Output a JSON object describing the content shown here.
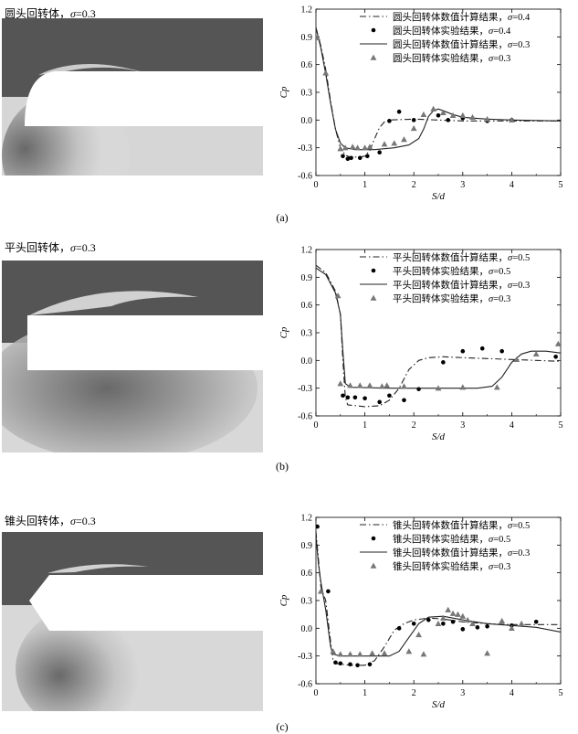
{
  "panels": [
    {
      "title_text": "圆头回转体，",
      "title_sym": "σ",
      "title_val": "=0.3",
      "label": "(a)"
    },
    {
      "title_text": "平头回转体，",
      "title_sym": "σ",
      "title_val": "=0.3",
      "label": "(b)"
    },
    {
      "title_text": "锥头回转体，",
      "title_sym": "σ",
      "title_val": "=0.3",
      "label": "(c)"
    }
  ],
  "chart_data": [
    {
      "type": "line",
      "xlabel": "S/d",
      "ylabel": "Cp",
      "xlim": [
        0,
        5
      ],
      "ylim": [
        -0.6,
        1.2
      ],
      "xticks": [
        "0",
        "1",
        "2",
        "3",
        "4",
        "5"
      ],
      "yticks": [
        "1.2",
        "0.9",
        "0.6",
        "0.3",
        "0.0",
        "-0.3",
        "-0.6"
      ],
      "legend_position": "top-right",
      "series": [
        {
          "name": "圆头回转体数值计算结果，σ=0.4",
          "style": "dashdot",
          "points": [
            [
              0.0,
              1.0
            ],
            [
              0.1,
              0.8
            ],
            [
              0.2,
              0.55
            ],
            [
              0.3,
              0.2
            ],
            [
              0.4,
              -0.1
            ],
            [
              0.5,
              -0.3
            ],
            [
              0.6,
              -0.38
            ],
            [
              0.7,
              -0.4
            ],
            [
              0.9,
              -0.4
            ],
            [
              1.0,
              -0.39
            ],
            [
              1.1,
              -0.33
            ],
            [
              1.2,
              -0.2
            ],
            [
              1.3,
              -0.08
            ],
            [
              1.4,
              -0.02
            ],
            [
              1.5,
              0.0
            ],
            [
              2.0,
              0.01
            ],
            [
              2.5,
              0.0
            ],
            [
              3.0,
              -0.01
            ],
            [
              4.0,
              -0.01
            ],
            [
              5.0,
              -0.01
            ]
          ]
        },
        {
          "name": "圆头回转体实验结果，σ=0.4",
          "style": "circle",
          "points": [
            [
              0.55,
              -0.39
            ],
            [
              0.65,
              -0.42
            ],
            [
              0.72,
              -0.41
            ],
            [
              0.9,
              -0.41
            ],
            [
              1.05,
              -0.39
            ],
            [
              1.3,
              -0.35
            ],
            [
              1.5,
              -0.01
            ],
            [
              1.7,
              0.09
            ],
            [
              2.0,
              0.0
            ],
            [
              2.5,
              0.05
            ],
            [
              2.7,
              0.0
            ],
            [
              3.0,
              0.02
            ],
            [
              3.5,
              -0.01
            ],
            [
              4.0,
              0.0
            ]
          ]
        },
        {
          "name": "圆头回转体数值计算结果，σ=0.3",
          "style": "solid",
          "points": [
            [
              0.0,
              1.0
            ],
            [
              0.1,
              0.78
            ],
            [
              0.2,
              0.5
            ],
            [
              0.3,
              0.18
            ],
            [
              0.4,
              -0.1
            ],
            [
              0.5,
              -0.25
            ],
            [
              0.6,
              -0.3
            ],
            [
              0.8,
              -0.32
            ],
            [
              1.2,
              -0.32
            ],
            [
              1.6,
              -0.3
            ],
            [
              1.9,
              -0.27
            ],
            [
              2.1,
              -0.2
            ],
            [
              2.2,
              -0.1
            ],
            [
              2.3,
              0.04
            ],
            [
              2.4,
              0.1
            ],
            [
              2.5,
              0.12
            ],
            [
              2.6,
              0.1
            ],
            [
              2.8,
              0.06
            ],
            [
              3.0,
              0.03
            ],
            [
              3.5,
              0.01
            ],
            [
              4.0,
              0.0
            ],
            [
              5.0,
              -0.01
            ]
          ]
        },
        {
          "name": "圆头回转体实验结果，σ=0.3",
          "style": "triangle",
          "points": [
            [
              0.03,
              0.89
            ],
            [
              0.2,
              0.51
            ],
            [
              0.5,
              -0.31
            ],
            [
              0.6,
              -0.3
            ],
            [
              0.75,
              -0.29
            ],
            [
              0.85,
              -0.3
            ],
            [
              1.0,
              -0.3
            ],
            [
              1.1,
              -0.29
            ],
            [
              1.4,
              -0.26
            ],
            [
              1.6,
              -0.25
            ],
            [
              1.8,
              -0.21
            ],
            [
              2.0,
              -0.09
            ],
            [
              2.2,
              0.06
            ],
            [
              2.4,
              0.12
            ],
            [
              2.6,
              0.08
            ],
            [
              2.8,
              0.05
            ],
            [
              3.0,
              0.05
            ],
            [
              3.2,
              0.03
            ],
            [
              3.5,
              0.01
            ],
            [
              4.0,
              0.0
            ]
          ]
        }
      ]
    },
    {
      "type": "line",
      "xlabel": "S/d",
      "ylabel": "Cp",
      "xlim": [
        0,
        5
      ],
      "ylim": [
        -0.6,
        1.2
      ],
      "xticks": [
        "0",
        "1",
        "2",
        "3",
        "4",
        "5"
      ],
      "yticks": [
        "1.2",
        "0.9",
        "0.6",
        "0.3",
        "0.0",
        "-0.3",
        "-0.6"
      ],
      "legend_position": "top-right",
      "series": [
        {
          "name": "平头回转体数值计算结果，σ=0.5",
          "style": "dashdot",
          "points": [
            [
              0.0,
              1.03
            ],
            [
              0.2,
              0.95
            ],
            [
              0.4,
              0.75
            ],
            [
              0.5,
              0.5
            ],
            [
              0.55,
              0.0
            ],
            [
              0.6,
              -0.4
            ],
            [
              0.65,
              -0.48
            ],
            [
              1.0,
              -0.5
            ],
            [
              1.3,
              -0.49
            ],
            [
              1.5,
              -0.43
            ],
            [
              1.7,
              -0.3
            ],
            [
              1.9,
              -0.1
            ],
            [
              2.1,
              0.0
            ],
            [
              2.3,
              0.03
            ],
            [
              2.6,
              0.04
            ],
            [
              3.0,
              0.03
            ],
            [
              3.5,
              0.02
            ],
            [
              4.0,
              0.01
            ],
            [
              4.5,
              0.0
            ],
            [
              5.0,
              -0.01
            ]
          ]
        },
        {
          "name": "平头回转体实验结果，σ=0.5",
          "style": "circle",
          "points": [
            [
              0.55,
              -0.38
            ],
            [
              0.65,
              -0.4
            ],
            [
              0.8,
              -0.4
            ],
            [
              1.0,
              -0.41
            ],
            [
              1.3,
              -0.45
            ],
            [
              1.5,
              -0.38
            ],
            [
              1.8,
              -0.43
            ],
            [
              2.1,
              -0.31
            ],
            [
              2.6,
              -0.02
            ],
            [
              3.0,
              0.1
            ],
            [
              3.4,
              0.13
            ],
            [
              3.8,
              0.1
            ],
            [
              4.9,
              0.04
            ]
          ]
        },
        {
          "name": "平头回转体数值计算结果，σ=0.3",
          "style": "solid",
          "points": [
            [
              0.0,
              1.0
            ],
            [
              0.2,
              0.93
            ],
            [
              0.4,
              0.73
            ],
            [
              0.5,
              0.5
            ],
            [
              0.55,
              0.1
            ],
            [
              0.6,
              -0.25
            ],
            [
              0.7,
              -0.29
            ],
            [
              1.5,
              -0.3
            ],
            [
              2.5,
              -0.3
            ],
            [
              3.3,
              -0.3
            ],
            [
              3.6,
              -0.28
            ],
            [
              3.8,
              -0.18
            ],
            [
              4.0,
              -0.02
            ],
            [
              4.2,
              0.07
            ],
            [
              4.4,
              0.1
            ],
            [
              4.7,
              0.1
            ],
            [
              5.0,
              0.08
            ]
          ]
        },
        {
          "name": "平头回转体实验结果，σ=0.3",
          "style": "triangle",
          "points": [
            [
              0.45,
              0.7
            ],
            [
              0.5,
              -0.25
            ],
            [
              0.7,
              -0.27
            ],
            [
              0.9,
              -0.27
            ],
            [
              1.1,
              -0.27
            ],
            [
              1.35,
              -0.28
            ],
            [
              1.45,
              -0.27
            ],
            [
              1.8,
              -0.28
            ],
            [
              2.5,
              -0.3
            ],
            [
              3.0,
              -0.29
            ],
            [
              3.7,
              -0.29
            ],
            [
              4.1,
              0.01
            ],
            [
              4.5,
              0.07
            ],
            [
              4.95,
              0.18
            ]
          ]
        }
      ]
    },
    {
      "type": "line",
      "xlabel": "S/d",
      "ylabel": "Cp",
      "xlim": [
        0,
        5
      ],
      "ylim": [
        -0.6,
        1.2
      ],
      "xticks": [
        "0",
        "1",
        "2",
        "3",
        "4",
        "5"
      ],
      "yticks": [
        "1.2",
        "0.9",
        "0.6",
        "0.3",
        "0.0",
        "-0.3",
        "-0.6"
      ],
      "legend_position": "top-right",
      "series": [
        {
          "name": "锥头回转体数值计算结果，σ=0.5",
          "style": "dashdot",
          "points": [
            [
              0.0,
              1.05
            ],
            [
              0.05,
              0.75
            ],
            [
              0.1,
              0.45
            ],
            [
              0.2,
              0.3
            ],
            [
              0.3,
              -0.15
            ],
            [
              0.35,
              -0.35
            ],
            [
              0.4,
              -0.38
            ],
            [
              0.7,
              -0.4
            ],
            [
              1.0,
              -0.4
            ],
            [
              1.2,
              -0.35
            ],
            [
              1.4,
              -0.2
            ],
            [
              1.6,
              -0.02
            ],
            [
              1.8,
              0.05
            ],
            [
              2.0,
              0.09
            ],
            [
              2.3,
              0.11
            ],
            [
              2.6,
              0.1
            ],
            [
              3.0,
              0.07
            ],
            [
              3.5,
              0.05
            ],
            [
              4.0,
              0.04
            ],
            [
              5.0,
              0.04
            ]
          ]
        },
        {
          "name": "锥头回转体实验结果，σ=0.5",
          "style": "circle",
          "points": [
            [
              0.03,
              1.1
            ],
            [
              0.25,
              0.4
            ],
            [
              0.4,
              -0.37
            ],
            [
              0.5,
              -0.38
            ],
            [
              0.7,
              -0.39
            ],
            [
              0.85,
              -0.4
            ],
            [
              1.1,
              -0.39
            ],
            [
              1.7,
              0.0
            ],
            [
              2.0,
              0.05
            ],
            [
              2.3,
              0.09
            ],
            [
              2.6,
              0.05
            ],
            [
              2.8,
              0.07
            ],
            [
              3.0,
              -0.01
            ],
            [
              3.3,
              0.01
            ],
            [
              3.5,
              0.02
            ],
            [
              4.0,
              0.03
            ],
            [
              4.5,
              0.07
            ]
          ]
        },
        {
          "name": "锥头回转体数值计算结果，σ=0.3",
          "style": "solid",
          "points": [
            [
              0.0,
              1.0
            ],
            [
              0.05,
              0.7
            ],
            [
              0.1,
              0.5
            ],
            [
              0.2,
              0.2
            ],
            [
              0.3,
              -0.2
            ],
            [
              0.35,
              -0.28
            ],
            [
              0.5,
              -0.3
            ],
            [
              1.0,
              -0.3
            ],
            [
              1.5,
              -0.3
            ],
            [
              1.7,
              -0.25
            ],
            [
              1.9,
              -0.1
            ],
            [
              2.1,
              0.05
            ],
            [
              2.3,
              0.12
            ],
            [
              2.6,
              0.13
            ],
            [
              3.0,
              0.09
            ],
            [
              3.5,
              0.05
            ],
            [
              4.0,
              0.03
            ],
            [
              4.5,
              0.01
            ],
            [
              5.0,
              -0.04
            ]
          ]
        },
        {
          "name": "锥头回转体实验结果，σ=0.3",
          "style": "triangle",
          "points": [
            [
              0.1,
              0.4
            ],
            [
              0.35,
              -0.25
            ],
            [
              0.5,
              -0.28
            ],
            [
              0.7,
              -0.28
            ],
            [
              0.9,
              -0.28
            ],
            [
              1.15,
              -0.27
            ],
            [
              1.4,
              -0.27
            ],
            [
              1.9,
              -0.25
            ],
            [
              2.1,
              -0.07
            ],
            [
              2.2,
              -0.28
            ],
            [
              2.5,
              0.05
            ],
            [
              2.6,
              0.11
            ],
            [
              2.7,
              0.2
            ],
            [
              2.8,
              0.16
            ],
            [
              2.9,
              0.15
            ],
            [
              3.0,
              0.13
            ],
            [
              3.1,
              0.09
            ],
            [
              3.2,
              0.05
            ],
            [
              3.5,
              -0.27
            ],
            [
              3.8,
              0.08
            ],
            [
              4.0,
              0.0
            ],
            [
              4.2,
              0.05
            ]
          ]
        }
      ]
    }
  ]
}
